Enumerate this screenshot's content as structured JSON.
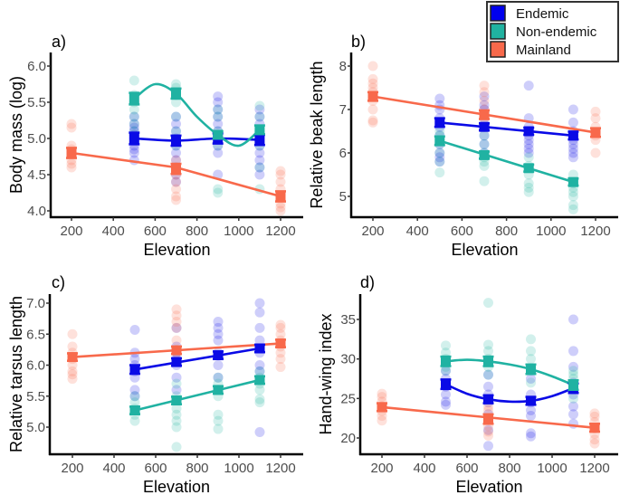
{
  "chart_data": [
    {
      "type": "scatter",
      "panel_label": "a)",
      "title": "",
      "xlabel": "Elevation",
      "ylabel": "Body mass (log)",
      "xlim": [
        100,
        1300
      ],
      "ylim": [
        3.95,
        6.05
      ],
      "xticks": [
        200,
        400,
        600,
        800,
        1000,
        1200
      ],
      "yticks": [
        4.0,
        4.5,
        5.0,
        5.5,
        6.0
      ],
      "ytick_labels": [
        "4.0",
        "4.5",
        "5.0",
        "5.5",
        "6.0"
      ],
      "grid": false,
      "series": [
        {
          "name": "Endemic",
          "fit": "smooth",
          "x": [
            500,
            700,
            900,
            1100
          ],
          "mean": [
            5.0,
            4.97,
            5.0,
            4.98
          ],
          "se": [
            0.08,
            0.07,
            0.07,
            0.07
          ],
          "points": {
            "500": [
              4.7,
              4.8,
              4.85,
              4.9,
              5.0,
              5.05,
              5.1,
              5.15,
              5.2,
              5.3
            ],
            "700": [
              4.4,
              4.5,
              4.6,
              4.7,
              4.8,
              4.9,
              5.0,
              5.1,
              5.2,
              5.3
            ],
            "900": [
              4.5,
              4.8,
              4.9,
              5.0,
              5.1,
              5.2,
              5.3,
              5.4,
              5.5,
              5.58
            ],
            "1100": [
              4.5,
              4.6,
              4.7,
              4.8,
              4.9,
              5.0,
              5.1,
              5.2,
              5.3,
              5.4
            ]
          }
        },
        {
          "name": "Non-endemic",
          "fit": "smooth",
          "x": [
            500,
            700,
            900,
            1100
          ],
          "mean": [
            5.55,
            5.62,
            5.05,
            5.12
          ],
          "se": [
            0.08,
            0.07,
            0.05,
            0.06
          ],
          "curve": [
            [
              500,
              5.55
            ],
            [
              600,
              5.75
            ],
            [
              700,
              5.62
            ],
            [
              800,
              5.3
            ],
            [
              900,
              5.05
            ],
            [
              1000,
              4.9
            ],
            [
              1100,
              5.12
            ]
          ],
          "points": {
            "500": [
              5.1,
              5.2,
              5.3,
              5.4,
              5.5,
              5.6,
              5.8
            ],
            "700": [
              4.9,
              5.1,
              5.3,
              5.5,
              5.6,
              5.7,
              5.75
            ],
            "900": [
              4.25,
              4.3,
              4.9,
              5.0,
              5.1,
              5.3,
              5.4
            ],
            "1100": [
              4.3,
              4.6,
              4.9,
              5.1,
              5.3,
              5.45
            ]
          }
        },
        {
          "name": "Mainland",
          "fit": "linear",
          "x": [
            200,
            700,
            1200
          ],
          "mean": [
            4.8,
            4.58,
            4.2
          ],
          "se": [
            0.07,
            0.07,
            0.07
          ],
          "curve": [
            [
              200,
              4.8
            ],
            [
              700,
              4.6
            ],
            [
              1200,
              4.2
            ]
          ],
          "points": {
            "200": [
              4.6,
              4.65,
              4.7,
              4.8,
              4.85,
              4.9,
              5.15,
              5.2
            ],
            "700": [
              4.15,
              4.2,
              4.3,
              4.4,
              4.5,
              4.6,
              4.7
            ],
            "1200": [
              4.0,
              4.05,
              4.1,
              4.2,
              4.3,
              4.4,
              4.5,
              4.55
            ]
          }
        }
      ]
    },
    {
      "type": "scatter",
      "panel_label": "b)",
      "title": "",
      "xlabel": "Elevation",
      "ylabel": "Relative beak length",
      "xlim": [
        100,
        1300
      ],
      "ylim": [
        4.5,
        8.2
      ],
      "xticks": [
        200,
        400,
        600,
        800,
        1000,
        1200
      ],
      "yticks": [
        5,
        6,
        7,
        8
      ],
      "ytick_labels": [
        "5",
        "6",
        "7",
        "8"
      ],
      "grid": false,
      "series": [
        {
          "name": "Endemic",
          "fit": "linear",
          "x": [
            500,
            700,
            900,
            1100
          ],
          "mean": [
            6.7,
            6.6,
            6.5,
            6.4
          ],
          "se": [
            0.1,
            0.08,
            0.08,
            0.09
          ],
          "curve": [
            [
              500,
              6.7
            ],
            [
              1100,
              6.4
            ]
          ],
          "points": {
            "500": [
              5.8,
              5.9,
              6.0,
              6.2,
              6.4,
              6.6,
              6.8,
              7.0,
              7.1,
              7.25
            ],
            "700": [
              6.0,
              6.2,
              6.4,
              6.6,
              6.8,
              7.0,
              7.1,
              7.3
            ],
            "900": [
              6.0,
              6.1,
              6.2,
              6.3,
              6.4,
              6.5,
              6.6,
              6.8,
              7.55
            ],
            "1100": [
              5.9,
              6.0,
              6.1,
              6.2,
              6.3,
              6.5,
              6.7,
              7.0
            ]
          }
        },
        {
          "name": "Non-endemic",
          "fit": "linear",
          "x": [
            500,
            700,
            900,
            1100
          ],
          "mean": [
            6.28,
            5.95,
            5.65,
            5.33
          ],
          "se": [
            0.1,
            0.08,
            0.08,
            0.08
          ],
          "curve": [
            [
              500,
              6.28
            ],
            [
              1100,
              5.33
            ]
          ],
          "points": {
            "500": [
              5.55,
              5.8,
              6.0,
              6.2,
              6.4,
              6.5
            ],
            "700": [
              5.35,
              5.7,
              5.8,
              5.9,
              6.0,
              6.2,
              6.4
            ],
            "900": [
              5.1,
              5.2,
              5.3,
              5.5,
              5.7,
              5.9
            ],
            "1100": [
              4.7,
              4.8,
              5.0,
              5.1,
              5.2,
              5.3,
              5.5
            ]
          }
        },
        {
          "name": "Mainland",
          "fit": "linear",
          "x": [
            200,
            700,
            1200
          ],
          "mean": [
            7.3,
            6.88,
            6.47
          ],
          "se": [
            0.1,
            0.1,
            0.1
          ],
          "curve": [
            [
              200,
              7.3
            ],
            [
              1200,
              6.47
            ]
          ],
          "points": {
            "200": [
              6.7,
              6.75,
              7.0,
              7.2,
              7.4,
              7.5,
              7.6,
              7.7,
              8.0
            ],
            "700": [
              6.6,
              6.8,
              7.0,
              7.2,
              7.4,
              7.55
            ],
            "1200": [
              6.0,
              6.3,
              6.4,
              6.6,
              6.8,
              6.95
            ]
          }
        }
      ]
    },
    {
      "type": "scatter",
      "panel_label": "c)",
      "title": "",
      "xlabel": "Elevation",
      "ylabel": "Relative tarsus length",
      "xlim": [
        100,
        1300
      ],
      "ylim": [
        4.55,
        7.1
      ],
      "xticks": [
        200,
        400,
        600,
        800,
        1000,
        1200
      ],
      "yticks": [
        5.0,
        5.5,
        6.0,
        6.5,
        7.0
      ],
      "ytick_labels": [
        "5.0",
        "5.5",
        "6.0",
        "6.5",
        "7.0"
      ],
      "grid": false,
      "series": [
        {
          "name": "Endemic",
          "fit": "linear",
          "x": [
            500,
            700,
            900,
            1100
          ],
          "mean": [
            5.93,
            6.05,
            6.16,
            6.27
          ],
          "se": [
            0.07,
            0.06,
            0.06,
            0.06
          ],
          "curve": [
            [
              500,
              5.93
            ],
            [
              1100,
              6.27
            ]
          ],
          "points": {
            "500": [
              5.5,
              5.6,
              5.8,
              5.9,
              6.0,
              6.1,
              6.2,
              6.57
            ],
            "700": [
              5.6,
              5.8,
              6.0,
              6.1,
              6.2,
              6.3,
              6.6
            ],
            "900": [
              5.6,
              5.8,
              6.0,
              6.2,
              6.4,
              6.5,
              6.6,
              6.7
            ],
            "1100": [
              4.92,
              5.9,
              6.0,
              6.2,
              6.4,
              6.6,
              6.85,
              7.0
            ]
          }
        },
        {
          "name": "Non-endemic",
          "fit": "linear",
          "x": [
            500,
            700,
            900,
            1100
          ],
          "mean": [
            5.27,
            5.43,
            5.6,
            5.76
          ],
          "se": [
            0.06,
            0.06,
            0.06,
            0.06
          ],
          "curve": [
            [
              500,
              5.27
            ],
            [
              1100,
              5.76
            ]
          ],
          "points": {
            "500": [
              5.1,
              5.2,
              5.3,
              5.4,
              5.5
            ],
            "700": [
              4.68,
              5.0,
              5.1,
              5.2,
              5.3,
              5.5,
              5.7
            ],
            "900": [
              4.97,
              5.1,
              5.2,
              5.5,
              5.7,
              5.8
            ],
            "1100": [
              5.4,
              5.45,
              5.6,
              5.7,
              5.8,
              5.9
            ]
          }
        },
        {
          "name": "Mainland",
          "fit": "linear",
          "x": [
            200,
            700,
            1200
          ],
          "mean": [
            6.13,
            6.24,
            6.35
          ],
          "se": [
            0.06,
            0.06,
            0.06
          ],
          "curve": [
            [
              200,
              6.13
            ],
            [
              1200,
              6.35
            ]
          ],
          "points": {
            "200": [
              5.78,
              5.85,
              5.9,
              6.0,
              6.1,
              6.2,
              6.3,
              6.5
            ],
            "700": [
              6.2,
              6.4,
              6.6,
              6.7,
              6.8,
              6.9
            ],
            "1200": [
              5.97,
              6.1,
              6.2,
              6.3,
              6.4,
              6.5,
              6.6,
              6.65
            ]
          }
        }
      ]
    },
    {
      "type": "scatter",
      "panel_label": "d)",
      "title": "",
      "xlabel": "Elevation",
      "ylabel": "Hand-wing index",
      "xlim": [
        100,
        1300
      ],
      "ylim": [
        18.5,
        38
      ],
      "xticks": [
        200,
        400,
        600,
        800,
        1000,
        1200
      ],
      "yticks": [
        20,
        25,
        30,
        35
      ],
      "ytick_labels": [
        "20",
        "25",
        "30",
        "35"
      ],
      "grid": false,
      "series": [
        {
          "name": "Endemic",
          "fit": "smooth",
          "x": [
            500,
            700,
            900,
            1100
          ],
          "mean": [
            26.8,
            24.9,
            24.7,
            26.3
          ],
          "se": [
            0.6,
            0.5,
            0.5,
            0.6
          ],
          "curve": [
            [
              500,
              26.8
            ],
            [
              600,
              25.6
            ],
            [
              700,
              24.9
            ],
            [
              800,
              24.6
            ],
            [
              900,
              24.7
            ],
            [
              1000,
              25.3
            ],
            [
              1100,
              26.3
            ]
          ],
          "points": {
            "500": [
              24.2,
              24.6,
              25.5,
              26.5,
              27.5,
              28.5
            ],
            "700": [
              19.0,
              21.0,
              23.0,
              24.5,
              25.5,
              26.5,
              28.0
            ],
            "900": [
              20.2,
              20.6,
              22.8,
              23.5,
              24.5,
              25.5,
              27.5
            ],
            "1100": [
              21.8,
              23.0,
              24.0,
              25.5,
              27.0,
              29.0,
              31.0,
              35.0
            ]
          }
        },
        {
          "name": "Non-endemic",
          "fit": "smooth",
          "x": [
            500,
            700,
            900,
            1100
          ],
          "mean": [
            29.7,
            29.7,
            28.7,
            26.7
          ],
          "se": [
            0.6,
            0.6,
            0.6,
            0.6
          ],
          "curve": [
            [
              500,
              29.7
            ],
            [
              600,
              29.9
            ],
            [
              700,
              29.7
            ],
            [
              800,
              29.3
            ],
            [
              900,
              28.7
            ],
            [
              1000,
              27.8
            ],
            [
              1100,
              26.7
            ]
          ],
          "points": {
            "500": [
              28.5,
              29.0,
              30.0,
              30.8,
              31.7
            ],
            "700": [
              28.0,
              29.0,
              30.0,
              31.0,
              31.8,
              37.1
            ],
            "900": [
              27.0,
              28.5,
              30.0,
              31.0,
              32.5
            ],
            "1100": [
              25.0,
              26.5,
              27.5,
              28.0,
              28.5
            ]
          }
        },
        {
          "name": "Mainland",
          "fit": "linear",
          "x": [
            200,
            700,
            1200
          ],
          "mean": [
            23.9,
            22.4,
            21.3
          ],
          "se": [
            0.5,
            0.6,
            0.5
          ],
          "curve": [
            [
              200,
              23.9
            ],
            [
              1200,
              21.3
            ]
          ],
          "points": {
            "200": [
              22.2,
              22.8,
              23.4,
              24.0,
              24.6,
              25.2,
              25.6
            ],
            "700": [
              20.3,
              20.8,
              21.5,
              22.5,
              23.5,
              24.0
            ],
            "1200": [
              19.3,
              19.8,
              20.5,
              21.2,
              22.0,
              22.7,
              23.1
            ]
          }
        }
      ]
    }
  ],
  "legend": {
    "position": "top-right",
    "items": [
      {
        "label": "Endemic",
        "color": "#0000ee"
      },
      {
        "label": "Non-endemic",
        "color": "#20b2a0"
      },
      {
        "label": "Mainland",
        "color": "#f8694b"
      }
    ]
  },
  "colors": {
    "Endemic": "#0a0ae6",
    "Non-endemic": "#20b2a2",
    "Mainland": "#f8694b",
    "tick_text": "#4d4d4d",
    "axis": "#000000"
  }
}
